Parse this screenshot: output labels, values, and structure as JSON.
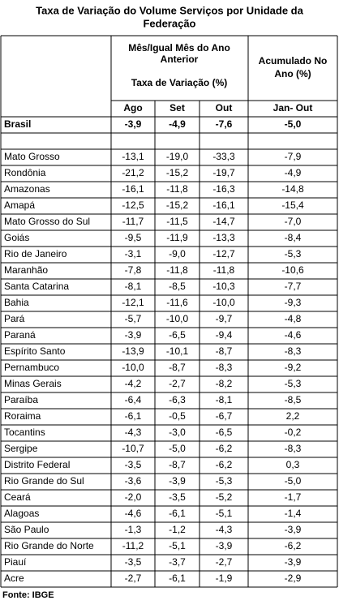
{
  "title": [
    "Taxa de Variação do Volume Serviços por Unidade da",
    "Federação"
  ],
  "header": {
    "group": [
      "Mês/Igual Mês do Ano",
      "Anterior"
    ],
    "rate": "Taxa de Variação (%)",
    "accumulated": [
      "Acumulado No",
      "Ano (%)"
    ],
    "columns": [
      "Ago",
      "Set",
      "Out",
      "Jan- Out"
    ]
  },
  "table": {
    "total": [
      "Brasil",
      "-3,9",
      "-4,9",
      "-7,6",
      "-5,0"
    ],
    "rows": [
      [
        "Mato Grosso",
        "-13,1",
        "-19,0",
        "-33,3",
        "-7,9"
      ],
      [
        "Rondônia",
        "-21,2",
        "-15,2",
        "-19,7",
        "-4,9"
      ],
      [
        "Amazonas",
        "-16,1",
        "-11,8",
        "-16,3",
        "-14,8"
      ],
      [
        "Amapá",
        "-12,5",
        "-15,2",
        "-16,1",
        "-15,4"
      ],
      [
        "Mato Grosso do Sul",
        "-11,7",
        "-11,5",
        "-14,7",
        "-7,0"
      ],
      [
        "Goiás",
        "-9,5",
        "-11,9",
        "-13,3",
        "-8,4"
      ],
      [
        "Rio de Janeiro",
        "-3,1",
        "-9,0",
        "-12,7",
        "-5,3"
      ],
      [
        "Maranhão",
        "-7,8",
        "-11,8",
        "-11,8",
        "-10,6"
      ],
      [
        "Santa Catarina",
        "-8,1",
        "-8,5",
        "-10,3",
        "-7,7"
      ],
      [
        "Bahia",
        "-12,1",
        "-11,6",
        "-10,0",
        "-9,3"
      ],
      [
        "Pará",
        "-5,7",
        "-10,0",
        "-9,7",
        "-4,8"
      ],
      [
        "Paraná",
        "-3,9",
        "-6,5",
        "-9,4",
        "-4,6"
      ],
      [
        "Espírito Santo",
        "-13,9",
        "-10,1",
        "-8,7",
        "-8,3"
      ],
      [
        "Pernambuco",
        "-10,0",
        "-8,7",
        "-8,3",
        "-9,2"
      ],
      [
        "Minas Gerais",
        "-4,2",
        "-2,7",
        "-8,2",
        "-5,3"
      ],
      [
        "Paraíba",
        "-6,4",
        "-6,3",
        "-8,1",
        "-8,5"
      ],
      [
        "Roraima",
        "-6,1",
        "-0,5",
        "-6,7",
        "2,2"
      ],
      [
        "Tocantins",
        "-4,3",
        "-3,0",
        "-6,5",
        "-0,2"
      ],
      [
        "Sergipe",
        "-10,7",
        "-5,0",
        "-6,2",
        "-8,3"
      ],
      [
        "Distrito Federal",
        "-3,5",
        "-8,7",
        "-6,2",
        "0,3"
      ],
      [
        "Rio Grande do Sul",
        "-3,6",
        "-3,9",
        "-5,3",
        "-5,0"
      ],
      [
        "Ceará",
        "-2,0",
        "-3,5",
        "-5,2",
        "-1,7"
      ],
      [
        "Alagoas",
        "-4,6",
        "-6,1",
        "-5,1",
        "-1,4"
      ],
      [
        "São Paulo",
        "-1,3",
        "-1,2",
        "-4,3",
        "-3,9"
      ],
      [
        "Rio Grande do Norte",
        "-11,2",
        "-5,1",
        "-3,9",
        "-6,2"
      ],
      [
        "Piauí",
        "-3,5",
        "-3,7",
        "-2,7",
        "-3,9"
      ],
      [
        "Acre",
        "-2,7",
        "-6,1",
        "-1,9",
        "-2,9"
      ]
    ]
  },
  "source": "Fonte: IBGE"
}
